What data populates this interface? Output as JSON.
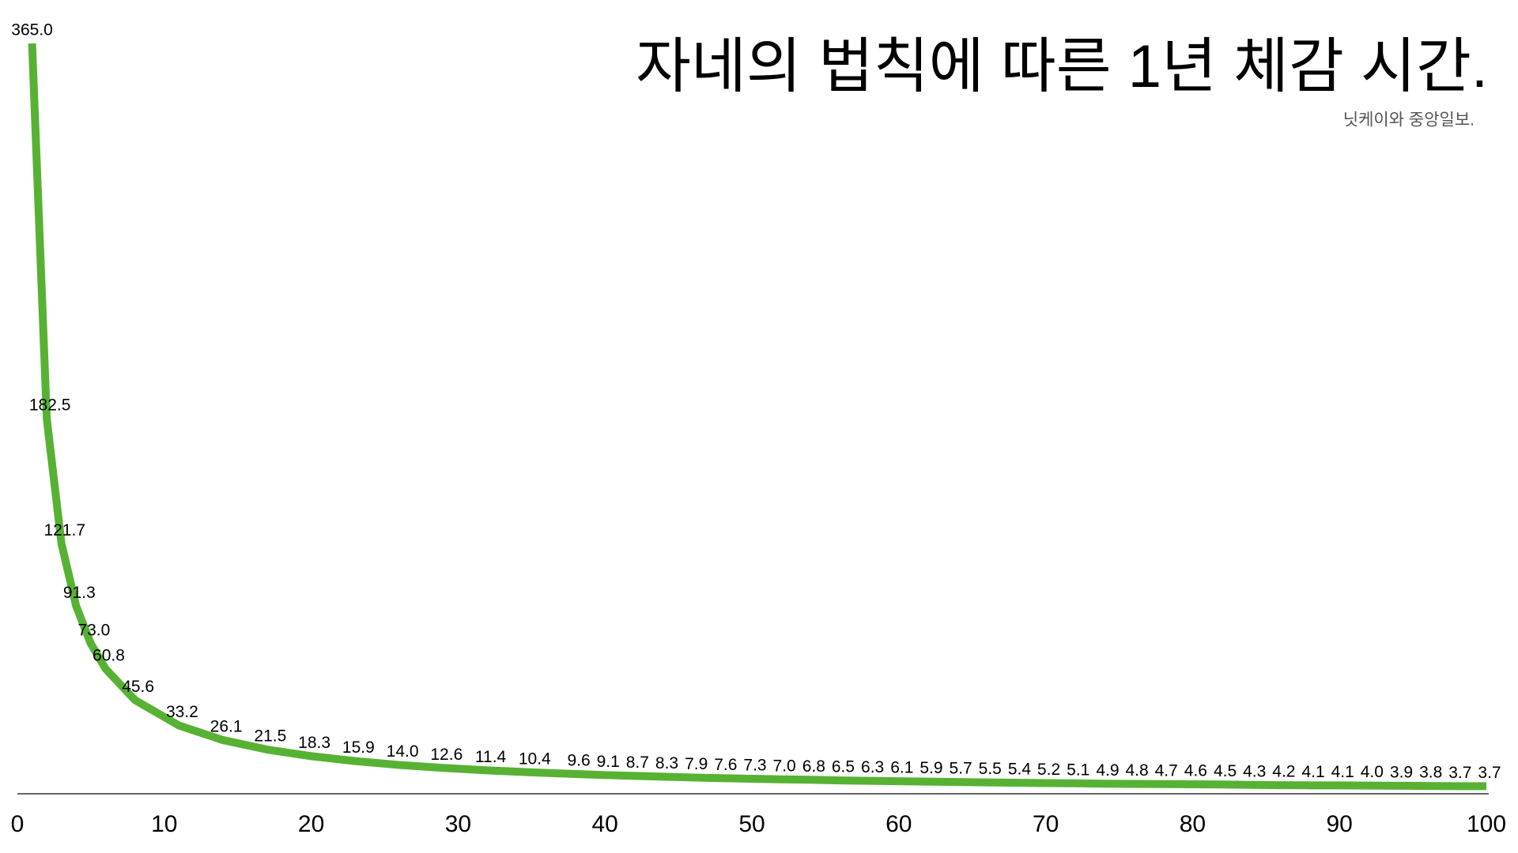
{
  "chart_data": {
    "type": "line",
    "title": "자네의 법칙에 따른 1년 체감 시간.",
    "subtitle": "닛케이와 중앙일보.",
    "x": [
      1,
      2,
      3,
      4,
      5,
      6,
      8,
      11,
      14,
      17,
      20,
      23,
      26,
      29,
      32,
      35,
      38,
      40,
      42,
      44,
      46,
      48,
      50,
      52,
      54,
      56,
      58,
      60,
      62,
      64,
      66,
      68,
      70,
      72,
      74,
      76,
      78,
      80,
      82,
      84,
      86,
      88,
      90,
      92,
      94,
      96,
      98,
      100
    ],
    "series": [
      {
        "color": "#57b233",
        "values": [
          365,
          182.5,
          121.7,
          91.3,
          73,
          60.8,
          45.6,
          33.2,
          26.1,
          21.5,
          18.3,
          15.9,
          14,
          12.6,
          11.4,
          10.4,
          9.6,
          9.1,
          8.7,
          8.3,
          7.9,
          7.6,
          7.3,
          7,
          6.8,
          6.5,
          6.3,
          6.1,
          5.9,
          5.7,
          5.5,
          5.4,
          5.2,
          5.1,
          4.9,
          4.8,
          4.7,
          4.6,
          4.5,
          4.3,
          4.2,
          4.1,
          4.1,
          4,
          3.9,
          3.8,
          3.7,
          3.7
        ],
        "value_labels": [
          "365.0",
          "182.5",
          "121.7",
          "91.3",
          "73.0",
          "60.8",
          "45.6",
          "33.2",
          "26.1",
          "21.5",
          "18.3",
          "15.9",
          "14.0",
          "12.6",
          "11.4",
          "10.4",
          "9.6",
          "9.1",
          "8.7",
          "8.3",
          "7.9",
          "7.6",
          "7.3",
          "7.0",
          "6.8",
          "6.5",
          "6.3",
          "6.1",
          "5.9",
          "5.7",
          "5.5",
          "5.4",
          "5.2",
          "5.1",
          "4.9",
          "4.8",
          "4.7",
          "4.6",
          "4.5",
          "4.3",
          "4.2",
          "4.1",
          "4.1",
          "4.0",
          "3.9",
          "3.8",
          "3.7",
          "3.7"
        ]
      }
    ],
    "xlim": [
      0,
      100
    ],
    "xticks": [
      0,
      10,
      20,
      30,
      40,
      50,
      60,
      70,
      80,
      90,
      100
    ],
    "ylim": [
      0,
      365
    ]
  }
}
